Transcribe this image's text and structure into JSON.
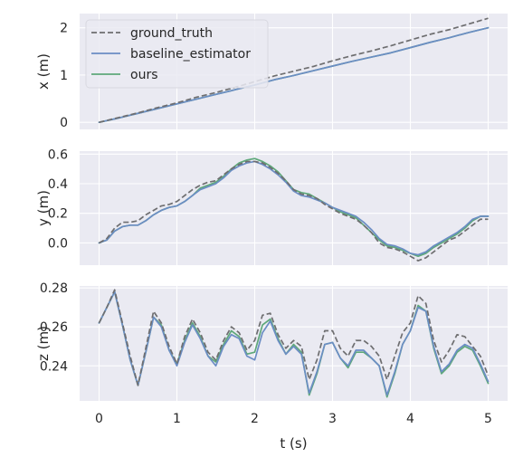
{
  "chart_data": {
    "type": "line",
    "xlabel": "t (s)",
    "xlim": [
      -0.25,
      5.25
    ],
    "xticks": [
      0,
      1,
      2,
      3,
      4,
      5
    ],
    "grid": true,
    "legend_position": "top-left (top panel)",
    "colors": {
      "ground_truth": "#6e6e70",
      "baseline_estimator": "#6b8dc4",
      "ours": "#5ea87a",
      "axes_background": "#eaeaf2",
      "grid": "#ffffff"
    },
    "panels": [
      {
        "ylabel": "x (m)",
        "ylim": [
          -0.15,
          2.3
        ],
        "yticks": [
          0,
          1,
          2
        ],
        "x": [
          0,
          0.25,
          0.5,
          0.75,
          1,
          1.25,
          1.5,
          1.75,
          2,
          2.25,
          2.5,
          2.75,
          3,
          3.25,
          3.5,
          3.75,
          4,
          4.25,
          4.5,
          4.75,
          5
        ],
        "series": [
          {
            "name": "ground_truth",
            "style": "dashed",
            "values": [
              0.0,
              0.1,
              0.2,
              0.31,
              0.41,
              0.53,
              0.63,
              0.74,
              0.86,
              0.98,
              1.08,
              1.18,
              1.3,
              1.41,
              1.51,
              1.62,
              1.74,
              1.86,
              1.96,
              2.08,
              2.2
            ]
          },
          {
            "name": "baseline_estimator",
            "style": "solid",
            "values": [
              0.0,
              0.09,
              0.19,
              0.29,
              0.39,
              0.49,
              0.59,
              0.69,
              0.79,
              0.9,
              0.99,
              1.09,
              1.19,
              1.29,
              1.38,
              1.47,
              1.58,
              1.69,
              1.79,
              1.9,
              2.0
            ]
          },
          {
            "name": "ours",
            "style": "solid",
            "values": [
              0.0,
              0.09,
              0.19,
              0.29,
              0.39,
              0.49,
              0.59,
              0.69,
              0.79,
              0.9,
              0.99,
              1.09,
              1.19,
              1.29,
              1.38,
              1.47,
              1.58,
              1.69,
              1.79,
              1.9,
              2.0
            ]
          }
        ]
      },
      {
        "ylabel": "y (m)",
        "ylim": [
          -0.15,
          0.62
        ],
        "yticks": [
          0.0,
          0.2,
          0.4,
          0.6
        ],
        "yticklabels": [
          "0.0",
          "0.2",
          "0.4",
          "0.6"
        ],
        "x": [
          0,
          0.1,
          0.2,
          0.3,
          0.4,
          0.5,
          0.6,
          0.7,
          0.8,
          0.9,
          1.0,
          1.1,
          1.2,
          1.3,
          1.4,
          1.5,
          1.6,
          1.7,
          1.8,
          1.9,
          2.0,
          2.1,
          2.2,
          2.3,
          2.4,
          2.5,
          2.6,
          2.7,
          2.8,
          2.9,
          3.0,
          3.1,
          3.2,
          3.3,
          3.4,
          3.5,
          3.6,
          3.7,
          3.8,
          3.9,
          4.0,
          4.1,
          4.2,
          4.3,
          4.4,
          4.5,
          4.6,
          4.7,
          4.8,
          4.9,
          5.0
        ],
        "series": [
          {
            "name": "ground_truth",
            "style": "dashed",
            "values": [
              0.0,
              0.03,
              0.1,
              0.14,
              0.14,
              0.15,
              0.19,
              0.22,
              0.25,
              0.26,
              0.28,
              0.32,
              0.36,
              0.39,
              0.41,
              0.42,
              0.46,
              0.5,
              0.53,
              0.55,
              0.55,
              0.54,
              0.51,
              0.47,
              0.42,
              0.36,
              0.33,
              0.32,
              0.3,
              0.26,
              0.23,
              0.2,
              0.18,
              0.16,
              0.12,
              0.07,
              0.0,
              -0.03,
              -0.04,
              -0.06,
              -0.09,
              -0.12,
              -0.1,
              -0.06,
              -0.02,
              0.02,
              0.04,
              0.08,
              0.12,
              0.16,
              0.16
            ]
          },
          {
            "name": "baseline_estimator",
            "style": "solid",
            "values": [
              0.0,
              0.02,
              0.08,
              0.11,
              0.12,
              0.12,
              0.15,
              0.19,
              0.22,
              0.24,
              0.25,
              0.28,
              0.32,
              0.36,
              0.38,
              0.4,
              0.44,
              0.49,
              0.52,
              0.54,
              0.55,
              0.53,
              0.5,
              0.46,
              0.41,
              0.35,
              0.32,
              0.31,
              0.29,
              0.27,
              0.24,
              0.22,
              0.2,
              0.18,
              0.14,
              0.09,
              0.03,
              -0.01,
              -0.02,
              -0.04,
              -0.07,
              -0.08,
              -0.06,
              -0.02,
              0.01,
              0.04,
              0.07,
              0.11,
              0.16,
              0.18,
              0.18
            ]
          },
          {
            "name": "ours",
            "style": "solid",
            "values": [
              0.0,
              0.02,
              0.08,
              0.11,
              0.12,
              0.12,
              0.15,
              0.19,
              0.22,
              0.24,
              0.25,
              0.28,
              0.32,
              0.37,
              0.39,
              0.41,
              0.45,
              0.5,
              0.54,
              0.56,
              0.57,
              0.55,
              0.52,
              0.48,
              0.42,
              0.36,
              0.34,
              0.33,
              0.3,
              0.27,
              0.24,
              0.21,
              0.19,
              0.17,
              0.12,
              0.07,
              0.02,
              -0.02,
              -0.03,
              -0.05,
              -0.07,
              -0.09,
              -0.07,
              -0.03,
              0.0,
              0.03,
              0.06,
              0.1,
              0.15,
              0.18,
              0.18
            ]
          }
        ]
      },
      {
        "ylabel": "z (m)",
        "ylim": [
          0.222,
          0.281
        ],
        "yticks": [
          0.24,
          0.26,
          0.28
        ],
        "yticklabels": [
          "0.24",
          "0.26",
          "0.28"
        ],
        "x": [
          0,
          0.1,
          0.2,
          0.3,
          0.4,
          0.5,
          0.6,
          0.7,
          0.8,
          0.9,
          1.0,
          1.1,
          1.2,
          1.3,
          1.4,
          1.5,
          1.6,
          1.7,
          1.8,
          1.9,
          2.0,
          2.1,
          2.2,
          2.3,
          2.4,
          2.5,
          2.6,
          2.7,
          2.8,
          2.9,
          3.0,
          3.1,
          3.2,
          3.3,
          3.4,
          3.5,
          3.6,
          3.7,
          3.8,
          3.9,
          4.0,
          4.1,
          4.2,
          4.3,
          4.4,
          4.5,
          4.6,
          4.7,
          4.8,
          4.9,
          5.0
        ],
        "series": [
          {
            "name": "ground_truth",
            "style": "dashed",
            "values": [
              0.262,
              0.27,
              0.279,
              0.262,
              0.245,
              0.23,
              0.249,
              0.268,
              0.262,
              0.25,
              0.241,
              0.255,
              0.264,
              0.257,
              0.247,
              0.243,
              0.253,
              0.26,
              0.257,
              0.248,
              0.253,
              0.266,
              0.267,
              0.256,
              0.249,
              0.253,
              0.25,
              0.233,
              0.243,
              0.258,
              0.258,
              0.249,
              0.245,
              0.253,
              0.253,
              0.25,
              0.245,
              0.233,
              0.245,
              0.257,
              0.262,
              0.276,
              0.272,
              0.253,
              0.242,
              0.248,
              0.256,
              0.255,
              0.25,
              0.245,
              0.235
            ]
          },
          {
            "name": "baseline_estimator",
            "style": "solid",
            "values": [
              0.262,
              0.27,
              0.278,
              0.261,
              0.243,
              0.23,
              0.247,
              0.265,
              0.26,
              0.248,
              0.24,
              0.252,
              0.261,
              0.254,
              0.245,
              0.24,
              0.25,
              0.256,
              0.254,
              0.245,
              0.243,
              0.257,
              0.263,
              0.253,
              0.246,
              0.25,
              0.246,
              0.226,
              0.237,
              0.251,
              0.252,
              0.244,
              0.24,
              0.248,
              0.248,
              0.244,
              0.24,
              0.225,
              0.237,
              0.251,
              0.258,
              0.27,
              0.268,
              0.25,
              0.237,
              0.241,
              0.248,
              0.251,
              0.249,
              0.241,
              0.232
            ]
          },
          {
            "name": "ours",
            "style": "solid",
            "values": [
              0.262,
              0.27,
              0.278,
              0.261,
              0.243,
              0.23,
              0.247,
              0.265,
              0.261,
              0.248,
              0.241,
              0.253,
              0.262,
              0.255,
              0.245,
              0.242,
              0.251,
              0.258,
              0.255,
              0.246,
              0.247,
              0.261,
              0.264,
              0.254,
              0.246,
              0.251,
              0.247,
              0.225,
              0.236,
              0.251,
              0.252,
              0.244,
              0.239,
              0.247,
              0.247,
              0.244,
              0.24,
              0.224,
              0.236,
              0.251,
              0.258,
              0.271,
              0.268,
              0.249,
              0.236,
              0.24,
              0.247,
              0.25,
              0.248,
              0.24,
              0.231
            ]
          }
        ]
      }
    ],
    "legend": [
      {
        "label": "ground_truth",
        "style": "dashed"
      },
      {
        "label": "baseline_estimator",
        "style": "solid"
      },
      {
        "label": "ours",
        "style": "solid"
      }
    ]
  }
}
